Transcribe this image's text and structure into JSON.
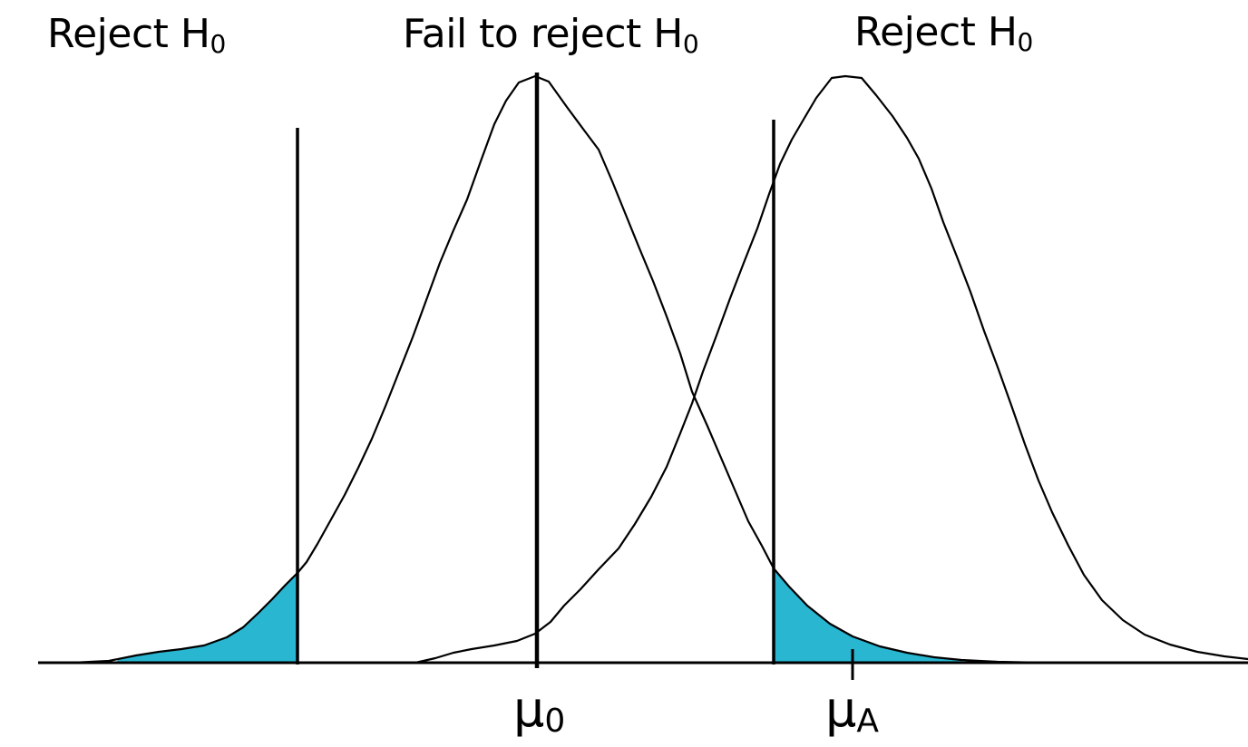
{
  "labels": {
    "reject_left": {
      "text": "Reject H",
      "sub": "0"
    },
    "fail_to_reject": {
      "text": "Fail to reject H",
      "sub": "0"
    },
    "reject_right": {
      "text": "Reject H",
      "sub": "0"
    },
    "mu_null": {
      "symbol": "μ",
      "sub": "0"
    },
    "mu_alt": {
      "symbol": "μ",
      "sub": "A"
    }
  },
  "colors": {
    "background": "#ffffff",
    "line": "#000000",
    "shaded_region": "#29b6d1"
  }
}
